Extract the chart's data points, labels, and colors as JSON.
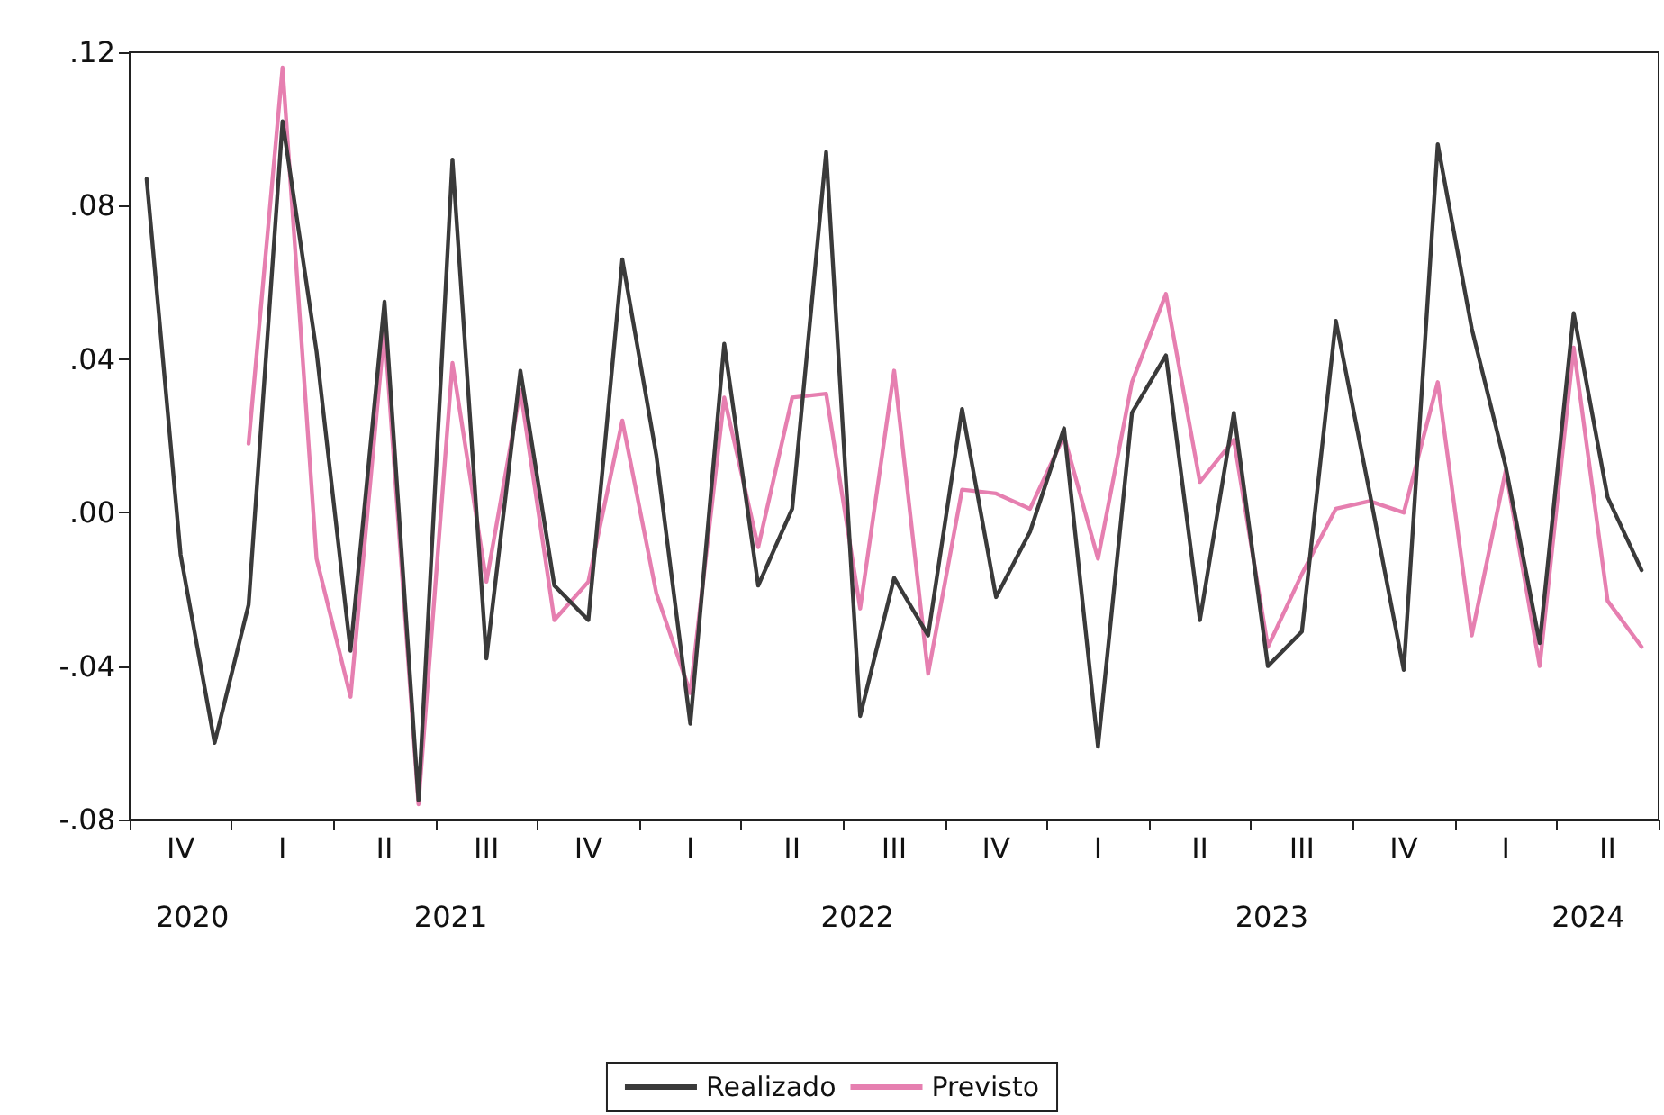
{
  "chart_data": {
    "type": "line",
    "categories": [
      null,
      "IV",
      null,
      null,
      "I",
      null,
      null,
      "II",
      null,
      null,
      "III",
      null,
      null,
      "IV",
      null,
      null,
      "I",
      null,
      null,
      "II",
      null,
      null,
      "III",
      null,
      null,
      "IV",
      null,
      null,
      "I",
      null,
      null,
      "II",
      null,
      null,
      "III",
      null,
      null,
      "IV",
      null,
      null,
      "I",
      null,
      null,
      "II",
      null
    ],
    "series": [
      {
        "name": "Realizado",
        "color": "#3a3a3a",
        "values": [
          0.087,
          -0.011,
          -0.06,
          -0.024,
          0.102,
          0.042,
          -0.036,
          0.055,
          -0.075,
          0.092,
          -0.038,
          0.037,
          -0.019,
          -0.028,
          0.066,
          0.015,
          -0.055,
          0.044,
          -0.019,
          0.001,
          0.094,
          -0.053,
          -0.017,
          -0.032,
          0.027,
          -0.022,
          -0.005,
          0.022,
          -0.061,
          0.026,
          0.041,
          -0.028,
          0.026,
          -0.04,
          -0.031,
          0.05,
          0.005,
          -0.041,
          0.096,
          0.048,
          0.012,
          -0.034,
          0.052,
          0.004,
          -0.015
        ]
      },
      {
        "name": "Previsto",
        "color": "#e67fb0",
        "values": [
          null,
          null,
          null,
          0.018,
          0.116,
          -0.012,
          -0.048,
          0.048,
          -0.076,
          0.039,
          -0.018,
          0.032,
          -0.028,
          -0.018,
          0.024,
          -0.021,
          -0.047,
          0.03,
          -0.009,
          0.03,
          0.031,
          -0.025,
          0.037,
          -0.042,
          0.006,
          0.005,
          0.001,
          0.02,
          -0.012,
          0.034,
          0.057,
          0.008,
          0.019,
          -0.035,
          -0.016,
          0.001,
          0.003,
          0.0,
          0.034,
          -0.032,
          0.011,
          -0.04,
          0.043,
          -0.023,
          -0.035
        ]
      }
    ],
    "annotations": [
      "2020",
      "2021",
      "2022",
      "2023",
      "2024"
    ],
    "ylim": [
      -0.08,
      0.12
    ],
    "yticks": [
      {
        "value": -0.08,
        "label": "-.08"
      },
      {
        "value": -0.04,
        "label": "-.04"
      },
      {
        "value": 0,
        "label": ".00"
      },
      {
        "value": 0.04,
        "label": ".04"
      },
      {
        "value": 0.08,
        "label": ".08"
      },
      {
        "value": 0.12,
        "label": ".12"
      }
    ],
    "grid": false,
    "legend": "bottom",
    "marker": "none",
    "line_style": "solid"
  }
}
